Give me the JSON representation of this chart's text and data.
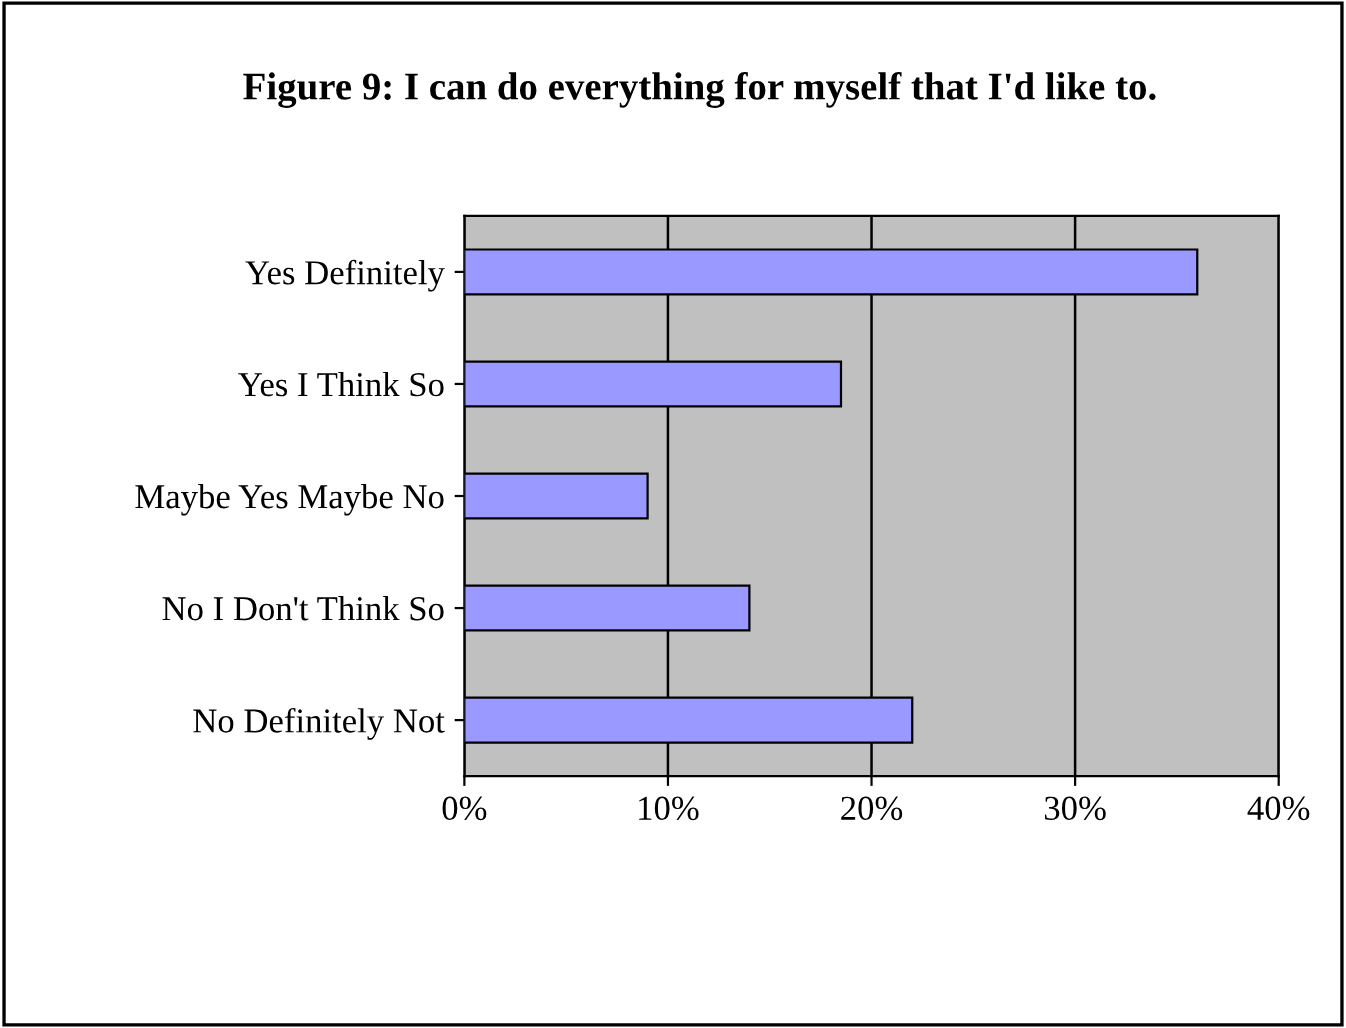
{
  "chart_data": {
    "type": "bar",
    "orientation": "horizontal",
    "title": "Figure 9: I can do everything for myself that I'd like to.",
    "categories": [
      "Yes Definitely",
      "Yes I Think So",
      "Maybe Yes Maybe No",
      "No I Don't Think So",
      "No Definitely Not"
    ],
    "values": [
      36,
      18.5,
      9,
      14,
      22
    ],
    "color": "#9999ff",
    "xlim": [
      0,
      40
    ],
    "xticks": [
      {
        "value": 0,
        "label": "0%"
      },
      {
        "value": 10,
        "label": "10%"
      },
      {
        "value": 20,
        "label": "20%"
      },
      {
        "value": 30,
        "label": "30%"
      },
      {
        "value": 40,
        "label": "40%"
      }
    ],
    "grid": "x",
    "legend": false
  }
}
